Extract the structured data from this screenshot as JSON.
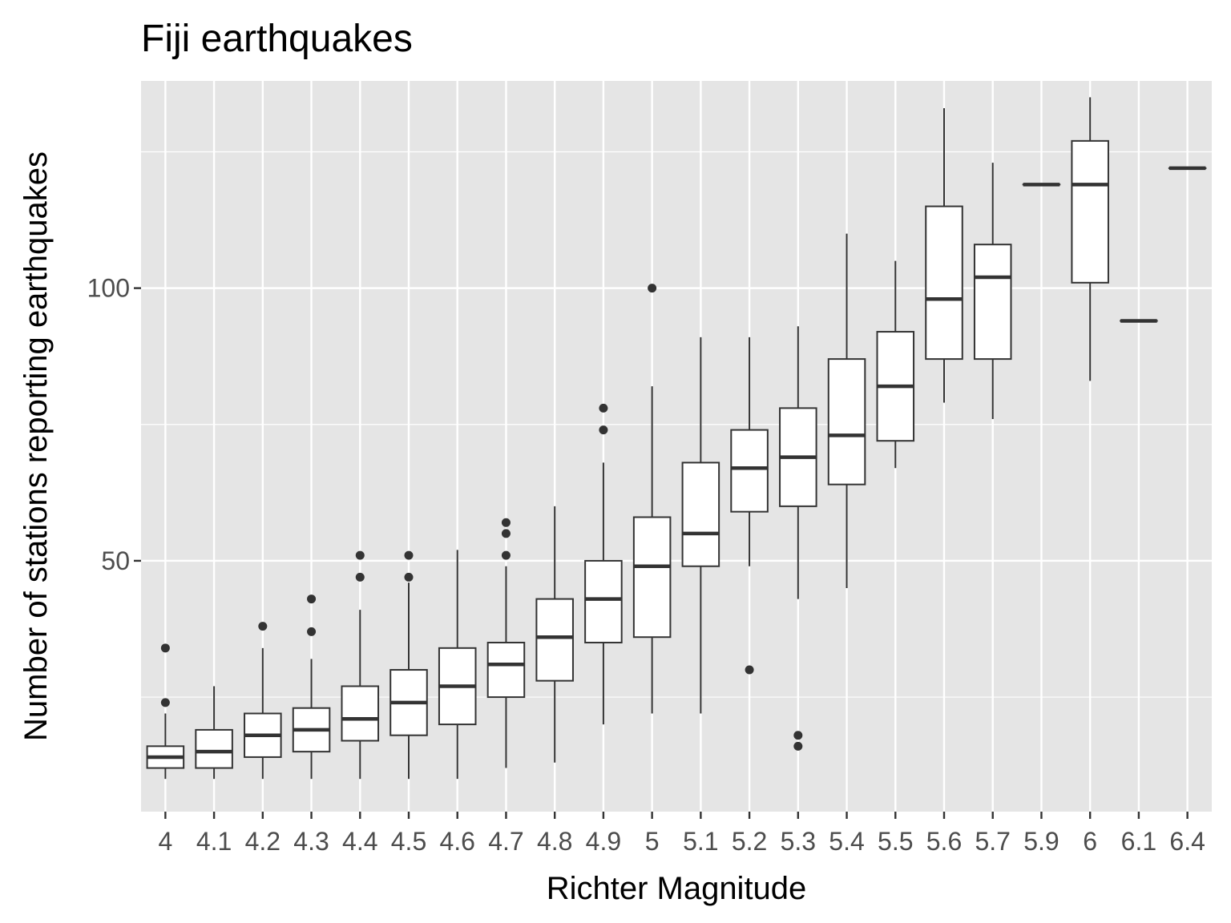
{
  "chart_data": {
    "type": "boxplot",
    "title": "Fiji earthquakes",
    "xlabel": "Richter Magnitude",
    "ylabel": "Number of stations reporting earthquakes",
    "ylim": [
      4,
      138
    ],
    "yticks": [
      50,
      100
    ],
    "y_minor_ticks": [
      25,
      75,
      125
    ],
    "grid": true,
    "panel_background": "#e5e5e5",
    "grid_color": "#ffffff",
    "box_stroke": "#333333",
    "box_fill": "#ffffff",
    "categories": [
      "4",
      "4.1",
      "4.2",
      "4.3",
      "4.4",
      "4.5",
      "4.6",
      "4.7",
      "4.8",
      "4.9",
      "5",
      "5.1",
      "5.2",
      "5.3",
      "5.4",
      "5.5",
      "5.6",
      "5.7",
      "5.9",
      "6",
      "6.1",
      "6.4"
    ],
    "boxes": [
      {
        "min": 10,
        "q1": 12,
        "median": 14,
        "q3": 16,
        "max": 22,
        "outliers": [
          24,
          34
        ]
      },
      {
        "min": 10,
        "q1": 12,
        "median": 15,
        "q3": 19,
        "max": 27,
        "outliers": []
      },
      {
        "min": 10,
        "q1": 14,
        "median": 18,
        "q3": 22,
        "max": 34,
        "outliers": [
          38
        ]
      },
      {
        "min": 10,
        "q1": 15,
        "median": 19,
        "q3": 23,
        "max": 32,
        "outliers": [
          37,
          43
        ]
      },
      {
        "min": 10,
        "q1": 17,
        "median": 21,
        "q3": 27,
        "max": 41,
        "outliers": [
          47,
          51
        ]
      },
      {
        "min": 10,
        "q1": 18,
        "median": 24,
        "q3": 30,
        "max": 46,
        "outliers": [
          47,
          51
        ]
      },
      {
        "min": 10,
        "q1": 20,
        "median": 27,
        "q3": 34,
        "max": 52,
        "outliers": []
      },
      {
        "min": 12,
        "q1": 25,
        "median": 31,
        "q3": 35,
        "max": 49,
        "outliers": [
          51,
          55,
          57
        ]
      },
      {
        "min": 13,
        "q1": 28,
        "median": 36,
        "q3": 43,
        "max": 60,
        "outliers": []
      },
      {
        "min": 20,
        "q1": 35,
        "median": 43,
        "q3": 50,
        "max": 68,
        "outliers": [
          74,
          78
        ]
      },
      {
        "min": 22,
        "q1": 36,
        "median": 49,
        "q3": 58,
        "max": 82,
        "outliers": [
          100
        ]
      },
      {
        "min": 22,
        "q1": 49,
        "median": 55,
        "q3": 68,
        "max": 91,
        "outliers": []
      },
      {
        "min": 49,
        "q1": 59,
        "median": 67,
        "q3": 74,
        "max": 91,
        "outliers": [
          30
        ]
      },
      {
        "min": 43,
        "q1": 60,
        "median": 69,
        "q3": 78,
        "max": 93,
        "outliers": [
          16,
          18
        ]
      },
      {
        "min": 45,
        "q1": 64,
        "median": 73,
        "q3": 87,
        "max": 110,
        "outliers": []
      },
      {
        "min": 67,
        "q1": 72,
        "median": 82,
        "q3": 92,
        "max": 105,
        "outliers": []
      },
      {
        "min": 79,
        "q1": 87,
        "median": 98,
        "q3": 115,
        "max": 133,
        "outliers": []
      },
      {
        "min": 76,
        "q1": 87,
        "median": 102,
        "q3": 108,
        "max": 123,
        "outliers": []
      },
      {
        "min": 119,
        "q1": 119,
        "median": 119,
        "q3": 119,
        "max": 119,
        "outliers": []
      },
      {
        "min": 83,
        "q1": 101,
        "median": 119,
        "q3": 127,
        "max": 135,
        "outliers": []
      },
      {
        "min": 94,
        "q1": 94,
        "median": 94,
        "q3": 94,
        "max": 94,
        "outliers": []
      },
      {
        "min": 122,
        "q1": 122,
        "median": 122,
        "q3": 122,
        "max": 122,
        "outliers": []
      }
    ]
  }
}
